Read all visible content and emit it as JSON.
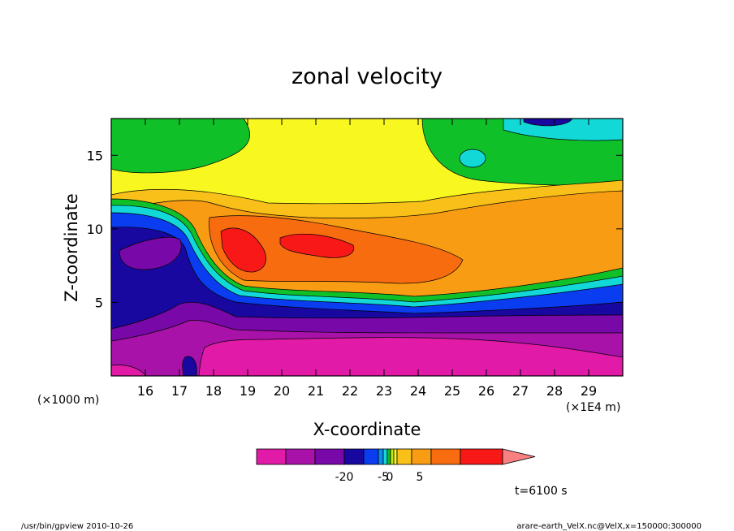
{
  "chart_data": {
    "type": "heatmap",
    "title": "zonal velocity",
    "xlabel": "X-coordinate",
    "ylabel": "Z-coordinate",
    "x_unit_label": "(×1E4 m)",
    "y_unit_label": "(×1000 m)",
    "x_ticks": [
      "16",
      "17",
      "18",
      "19",
      "20",
      "21",
      "22",
      "23",
      "24",
      "25",
      "26",
      "27",
      "28",
      "29"
    ],
    "x_tick_values": [
      16,
      17,
      18,
      19,
      20,
      21,
      22,
      23,
      24,
      25,
      26,
      27,
      28,
      29
    ],
    "y_ticks": [
      "5",
      "10",
      "15"
    ],
    "y_tick_values": [
      5,
      10,
      15
    ],
    "xlim": [
      15,
      30
    ],
    "ylim": [
      0,
      17.5
    ],
    "colorbar": {
      "labels": [
        "-20",
        "-5",
        "0",
        "5"
      ],
      "label_values": [
        -20,
        -5,
        0,
        5
      ],
      "colors": [
        "#e11aa8",
        "#a812a8",
        "#7808a8",
        "#1808a0",
        "#0a3cf0",
        "#0a8cf0",
        "#12d8d8",
        "#10c028",
        "#c8e814",
        "#f8f820",
        "#f8c018",
        "#f89c14",
        "#f86c10",
        "#f81818",
        "#f88080"
      ]
    },
    "time_label": "t=6100 s"
  },
  "footer": {
    "left": "/usr/bin/gpview   2010-10-26",
    "right": "arare-earth_VelX.nc@VelX,x=150000:300000"
  }
}
